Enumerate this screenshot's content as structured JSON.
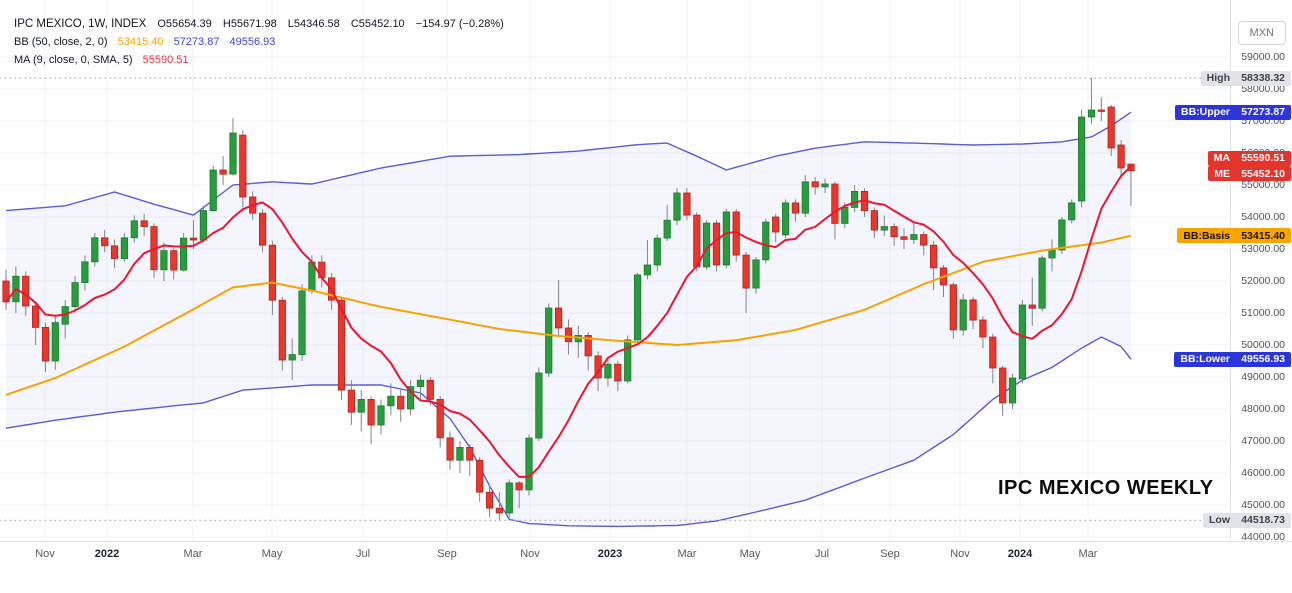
{
  "legend": {
    "symbol_row": {
      "title": "IPC MEXICO, 1W, INDEX",
      "open_label": "O",
      "open": "55654.39",
      "high_label": "H",
      "high": "55671.98",
      "low_label": "L",
      "low": "54346.58",
      "close_label": "C",
      "close": "55452.10",
      "change": "−154.97 (−0.28%)"
    },
    "bb_row": {
      "name": "BB (50, close, 2, 0)",
      "basis_value": "53415.40",
      "upper_value": "57273.87",
      "lower_value": "49556.93"
    },
    "ma_row": {
      "name": "MA (9, close, 0, SMA, 5)",
      "value": "55590.51"
    }
  },
  "watermark": "IPC MEXICO WEEKLY",
  "currency_button": "MXN",
  "colors": {
    "grid": "#f0f3fa",
    "up": "#2a9c3d",
    "up_border": "#1b7c2e",
    "down": "#e8372c",
    "down_border": "#b22421",
    "wick": "#7e8490",
    "ma_line": "#ee1430",
    "basis_line": "#f5a300",
    "band_line": "#585cd9",
    "band_fill": "rgba(88,104,222,0.06)",
    "dotted_line": "#b2b5be",
    "legend_basis": "#f7a600",
    "legend_band": "#3f47d6",
    "legend_ma": "#ef3142"
  },
  "price_axis": {
    "tick_labels": [
      "59000.00",
      "58000.00",
      "57000.00",
      "56000.00",
      "55000.00",
      "54000.00",
      "53000.00",
      "52000.00",
      "51000.00",
      "50000.00",
      "49000.00",
      "48000.00",
      "47000.00",
      "46000.00",
      "45000.00",
      "44000.00"
    ],
    "pills": [
      {
        "name": "high-line-label",
        "label": "High",
        "value": "58338.32",
        "price": 58338.32,
        "bg": "#e1e3e8",
        "fg": "#40444d",
        "dy": 0
      },
      {
        "name": "bb-upper-label",
        "label": "BB:Upper",
        "value": "57273.87",
        "price": 57273.87,
        "bg": "#2c35d8",
        "fg": "#ffffff",
        "dy": 0
      },
      {
        "name": "ma-price-label",
        "label": "MA",
        "value": "55590.51",
        "price": 55590.51,
        "bg": "#e5342b",
        "fg": "#ffffff",
        "dy": -8
      },
      {
        "name": "last-price-label",
        "label": "ME",
        "value": "55452.10",
        "price": 55452.1,
        "bg": "#e5342b",
        "fg": "#ffffff",
        "dy": 3
      },
      {
        "name": "bb-basis-label",
        "label": "BB:Basis",
        "value": "53415.40",
        "price": 53415.4,
        "bg": "#f7a600",
        "fg": "#1c1407",
        "dy": 0
      },
      {
        "name": "bb-lower-label",
        "label": "BB:Lower",
        "value": "49556.93",
        "price": 49556.93,
        "bg": "#2c35d8",
        "fg": "#ffffff",
        "dy": 0
      },
      {
        "name": "low-line-label",
        "label": "Low",
        "value": "44518.73",
        "price": 44518.73,
        "bg": "#e1e3e8",
        "fg": "#40444d",
        "dy": 0
      }
    ]
  },
  "time_axis": {
    "ticks": [
      {
        "label": "Nov",
        "x": 45,
        "bold": false
      },
      {
        "label": "2022",
        "x": 107,
        "bold": true
      },
      {
        "label": "Mar",
        "x": 193,
        "bold": false
      },
      {
        "label": "May",
        "x": 272,
        "bold": false
      },
      {
        "label": "Jul",
        "x": 363,
        "bold": false
      },
      {
        "label": "Sep",
        "x": 447,
        "bold": false
      },
      {
        "label": "Nov",
        "x": 530,
        "bold": false
      },
      {
        "label": "2023",
        "x": 610,
        "bold": true
      },
      {
        "label": "Mar",
        "x": 687,
        "bold": false
      },
      {
        "label": "May",
        "x": 750,
        "bold": false
      },
      {
        "label": "Jul",
        "x": 822,
        "bold": false
      },
      {
        "label": "Sep",
        "x": 890,
        "bold": false
      },
      {
        "label": "Nov",
        "x": 960,
        "bold": false
      },
      {
        "label": "2024",
        "x": 1020,
        "bold": true
      },
      {
        "label": "Mar",
        "x": 1088,
        "bold": false
      }
    ]
  },
  "chart_data": {
    "type": "candlestick",
    "title": "IPC MEXICO, 1W, INDEX",
    "symbol": "IPC MEXICO",
    "interval": "1W",
    "currency": "MXN",
    "y_axis": {
      "min": 44000,
      "max": 59000,
      "tick_step": 1000
    },
    "x_range": [
      "Nov 2021",
      "Mar 2024"
    ],
    "grid": true,
    "high_line": 58338.32,
    "low_line": 44518.73,
    "last": {
      "open": 55654.39,
      "high": 55671.98,
      "low": 54346.58,
      "close": 55452.1,
      "change": -154.97,
      "change_pct": -0.28
    },
    "candles": [
      [
        52000,
        52350,
        51100,
        51350
      ],
      [
        51350,
        52450,
        51000,
        52150
      ],
      [
        52150,
        52300,
        50900,
        51220
      ],
      [
        51220,
        51350,
        50000,
        50550
      ],
      [
        50550,
        50700,
        49150,
        49500
      ],
      [
        49500,
        50900,
        49220,
        50700
      ],
      [
        50650,
        51400,
        50200,
        51200
      ],
      [
        51200,
        52150,
        51000,
        51950
      ],
      [
        51950,
        52800,
        51700,
        52600
      ],
      [
        52600,
        53500,
        52450,
        53350
      ],
      [
        53350,
        53600,
        52900,
        53100
      ],
      [
        53100,
        53300,
        52400,
        52700
      ],
      [
        52700,
        53500,
        52600,
        53350
      ],
      [
        53350,
        54050,
        53200,
        53880
      ],
      [
        53880,
        54100,
        53400,
        53700
      ],
      [
        53700,
        53800,
        52100,
        52350
      ],
      [
        52350,
        53200,
        52000,
        52950
      ],
      [
        52950,
        53100,
        52050,
        52340
      ],
      [
        52340,
        53500,
        52300,
        53340
      ],
      [
        53340,
        53900,
        53000,
        53280
      ],
      [
        53280,
        54350,
        53200,
        54200
      ],
      [
        54200,
        55600,
        54150,
        55470
      ],
      [
        55470,
        55900,
        55000,
        55340
      ],
      [
        55340,
        57090,
        55300,
        56625
      ],
      [
        56560,
        56700,
        54300,
        54625
      ],
      [
        54625,
        54800,
        53900,
        54120
      ],
      [
        54120,
        54250,
        52900,
        53120
      ],
      [
        53120,
        53250,
        50940,
        51400
      ],
      [
        51400,
        51500,
        49200,
        49530
      ],
      [
        49530,
        50200,
        48900,
        49700
      ],
      [
        49700,
        51900,
        49500,
        51690
      ],
      [
        51690,
        52800,
        51600,
        52590
      ],
      [
        52590,
        52800,
        51800,
        52100
      ],
      [
        52100,
        52250,
        51100,
        51400
      ],
      [
        51400,
        51500,
        48280,
        48590
      ],
      [
        48590,
        48900,
        47500,
        47900
      ],
      [
        47900,
        48600,
        47300,
        48300
      ],
      [
        48300,
        48400,
        46900,
        47500
      ],
      [
        47500,
        48300,
        47200,
        48100
      ],
      [
        48100,
        48800,
        47800,
        48400
      ],
      [
        48400,
        48600,
        47600,
        48000
      ],
      [
        48000,
        48900,
        47800,
        48700
      ],
      [
        48700,
        49060,
        48300,
        48900
      ],
      [
        48900,
        49000,
        48100,
        48300
      ],
      [
        48300,
        48400,
        46800,
        47100
      ],
      [
        47100,
        47300,
        46100,
        46400
      ],
      [
        46400,
        47000,
        46000,
        46800
      ],
      [
        46800,
        46900,
        45900,
        46400
      ],
      [
        46400,
        46500,
        45100,
        45400
      ],
      [
        45400,
        45600,
        44620,
        44900
      ],
      [
        44900,
        45400,
        44518.73,
        44750
      ],
      [
        44750,
        45800,
        44600,
        45690
      ],
      [
        45690,
        45750,
        44900,
        45470
      ],
      [
        45470,
        47200,
        45300,
        47090
      ],
      [
        47090,
        49300,
        47000,
        49125
      ],
      [
        49125,
        51300,
        49000,
        51155
      ],
      [
        51155,
        52030,
        50300,
        50530
      ],
      [
        50530,
        50800,
        49700,
        50100
      ],
      [
        50100,
        50600,
        49600,
        50300
      ],
      [
        50300,
        50400,
        49200,
        49660
      ],
      [
        49660,
        49800,
        48560,
        48970
      ],
      [
        48970,
        49600,
        48700,
        49400
      ],
      [
        49400,
        49500,
        48560,
        48875
      ],
      [
        48875,
        50300,
        48800,
        50160
      ],
      [
        50160,
        52250,
        50100,
        52190
      ],
      [
        52190,
        53280,
        52050,
        52500
      ],
      [
        52500,
        53450,
        52300,
        53340
      ],
      [
        53340,
        54375,
        53250,
        53900
      ],
      [
        53900,
        54900,
        53750,
        54750
      ],
      [
        54750,
        54900,
        53900,
        54060
      ],
      [
        54060,
        54150,
        52300,
        52440
      ],
      [
        52440,
        53900,
        52350,
        53810
      ],
      [
        53810,
        53900,
        52300,
        52500
      ],
      [
        52500,
        54250,
        52400,
        54160
      ],
      [
        54160,
        54250,
        52600,
        52810
      ],
      [
        52810,
        52900,
        51000,
        51780
      ],
      [
        51780,
        52750,
        51600,
        52660
      ],
      [
        52660,
        53950,
        52550,
        53840
      ],
      [
        54000,
        54100,
        53200,
        53530
      ],
      [
        53440,
        54550,
        53350,
        54440
      ],
      [
        54440,
        54550,
        53850,
        54120
      ],
      [
        54120,
        55310,
        54000,
        55100
      ],
      [
        55100,
        55250,
        54700,
        54940
      ],
      [
        54940,
        55200,
        54750,
        55030
      ],
      [
        55030,
        55100,
        53300,
        53800
      ],
      [
        53800,
        54450,
        53650,
        54300
      ],
      [
        54300,
        55000,
        54150,
        54800
      ],
      [
        54800,
        54900,
        54000,
        54200
      ],
      [
        54200,
        54300,
        53350,
        53590
      ],
      [
        53590,
        54050,
        53400,
        53700
      ],
      [
        53700,
        53800,
        53100,
        53380
      ],
      [
        53380,
        53650,
        53000,
        53300
      ],
      [
        53300,
        53800,
        53150,
        53450
      ],
      [
        53450,
        53550,
        52800,
        53120
      ],
      [
        53120,
        53250,
        51720,
        52410
      ],
      [
        52410,
        52500,
        51500,
        51880
      ],
      [
        51880,
        51950,
        50200,
        50470
      ],
      [
        50470,
        51600,
        50300,
        51410
      ],
      [
        51410,
        51500,
        50500,
        50780
      ],
      [
        50780,
        50900,
        49900,
        50250
      ],
      [
        50250,
        50350,
        48800,
        49280
      ],
      [
        49280,
        49350,
        47780,
        48190
      ],
      [
        48190,
        49100,
        48000,
        48970
      ],
      [
        48940,
        51400,
        48800,
        51250
      ],
      [
        51250,
        52100,
        50600,
        51150
      ],
      [
        51150,
        52800,
        51050,
        52720
      ],
      [
        52720,
        53300,
        52300,
        52970
      ],
      [
        52970,
        54000,
        52850,
        53910
      ],
      [
        53910,
        54550,
        53800,
        54440
      ],
      [
        54500,
        57350,
        54300,
        57125
      ],
      [
        57125,
        58338.32,
        56900,
        57344
      ],
      [
        57344,
        57750,
        57000,
        57340
      ],
      [
        57438,
        57500,
        55900,
        56156
      ],
      [
        56250,
        56400,
        55200,
        55531
      ],
      [
        55654.39,
        55671.98,
        54346.58,
        55452.1
      ]
    ],
    "indicators": {
      "ma": {
        "period": 9,
        "source": "close",
        "type": "SMA",
        "last_value": 55590.51
      },
      "bb": {
        "period": 50,
        "source": "close",
        "stdev": 2,
        "basis_last": 53415.4,
        "upper_last": 57273.87,
        "lower_last": 49556.93,
        "basis": [
          [
            0,
            48440
          ],
          [
            5,
            48970
          ],
          [
            12,
            49950
          ],
          [
            18,
            50950
          ],
          [
            23,
            51800
          ],
          [
            27,
            51950
          ],
          [
            31,
            51700
          ],
          [
            38,
            51190
          ],
          [
            44,
            50850
          ],
          [
            50,
            50500
          ],
          [
            56,
            50280
          ],
          [
            62,
            50130
          ],
          [
            68,
            50000
          ],
          [
            74,
            50150
          ],
          [
            80,
            50470
          ],
          [
            87,
            51100
          ],
          [
            93,
            51900
          ],
          [
            99,
            52600
          ],
          [
            105,
            52950
          ],
          [
            111,
            53200
          ],
          [
            114,
            53415.4
          ]
        ],
        "upper": [
          [
            0,
            54200
          ],
          [
            6,
            54350
          ],
          [
            11,
            54780
          ],
          [
            15,
            54400
          ],
          [
            19,
            54060
          ],
          [
            23,
            55000
          ],
          [
            27,
            55100
          ],
          [
            31,
            55030
          ],
          [
            38,
            55530
          ],
          [
            45,
            55900
          ],
          [
            52,
            55950
          ],
          [
            58,
            56060
          ],
          [
            64,
            56260
          ],
          [
            67,
            56310
          ],
          [
            70,
            55900
          ],
          [
            73,
            55470
          ],
          [
            78,
            55900
          ],
          [
            82,
            56150
          ],
          [
            87,
            56350
          ],
          [
            93,
            56300
          ],
          [
            98,
            56250
          ],
          [
            103,
            56280
          ],
          [
            107,
            56350
          ],
          [
            110,
            56500
          ],
          [
            112,
            56850
          ],
          [
            114,
            57273.87
          ]
        ],
        "lower": [
          [
            0,
            47400
          ],
          [
            5,
            47650
          ],
          [
            11,
            47900
          ],
          [
            17,
            48100
          ],
          [
            20,
            48190
          ],
          [
            24,
            48590
          ],
          [
            31,
            48750
          ],
          [
            38,
            48750
          ],
          [
            42,
            48500
          ],
          [
            45,
            47700
          ],
          [
            47,
            46800
          ],
          [
            49,
            45600
          ],
          [
            51,
            44550
          ],
          [
            53,
            44420
          ],
          [
            57,
            44350
          ],
          [
            62,
            44330
          ],
          [
            68,
            44360
          ],
          [
            72,
            44500
          ],
          [
            76,
            44780
          ],
          [
            81,
            45150
          ],
          [
            87,
            45840
          ],
          [
            92,
            46400
          ],
          [
            96,
            47200
          ],
          [
            100,
            48300
          ],
          [
            103,
            48900
          ],
          [
            106,
            49300
          ],
          [
            109,
            49900
          ],
          [
            111,
            50250
          ],
          [
            113,
            49950
          ],
          [
            114,
            49556.93
          ]
        ]
      }
    }
  }
}
